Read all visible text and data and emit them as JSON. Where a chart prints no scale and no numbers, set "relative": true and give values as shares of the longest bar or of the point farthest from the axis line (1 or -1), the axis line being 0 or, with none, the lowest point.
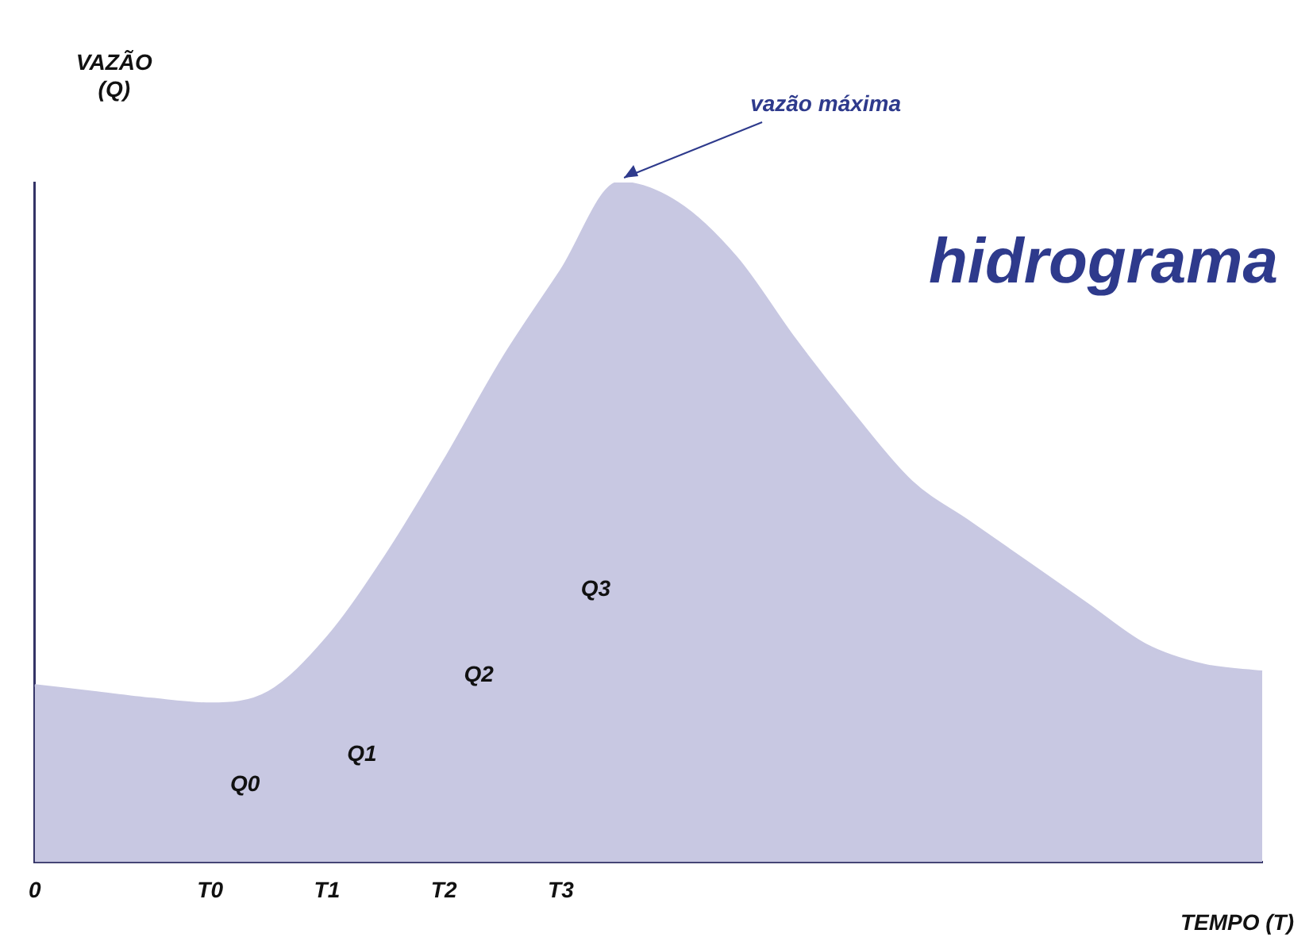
{
  "chart_data": {
    "type": "area",
    "title": "hidrograma",
    "xlabel": "TEMPO (T)",
    "ylabel": "VAZÃO\n(Q)",
    "relative": true,
    "legend": false,
    "grid": false,
    "categories": [
      "0",
      null,
      null,
      "T0",
      null,
      "T1",
      null,
      "T2",
      null,
      "T3",
      null,
      null,
      null,
      null,
      null,
      null,
      null,
      null,
      null,
      null,
      null,
      null
    ],
    "series": [
      {
        "color": "#c8c8e2",
        "values": [
          0.26,
          0.25,
          0.24,
          0.233,
          0.25,
          0.33,
          0.45,
          0.59,
          0.74,
          0.87,
          1,
          0.97,
          0.89,
          0.77,
          0.66,
          0.56,
          0.5,
          0.44,
          0.38,
          0.32,
          0.29,
          0.28
        ]
      }
    ],
    "annotations": [
      "vazão máxima",
      "Q0",
      "Q1",
      "Q2",
      "Q3"
    ]
  }
}
